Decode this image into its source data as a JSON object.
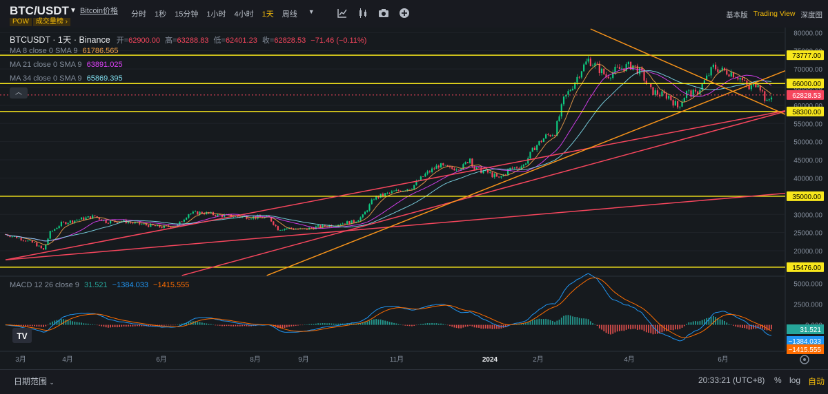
{
  "header": {
    "pair": "BTC/USDT",
    "price_link": "Bitcoin价格",
    "tags": [
      "POW",
      "成交量榜"
    ],
    "intervals": [
      {
        "label": "分时",
        "active": false
      },
      {
        "label": "1秒",
        "active": false
      },
      {
        "label": "15分钟",
        "active": false
      },
      {
        "label": "1小时",
        "active": false
      },
      {
        "label": "4小时",
        "active": false
      },
      {
        "label": "1天",
        "active": true
      },
      {
        "label": "周线",
        "active": false
      }
    ],
    "tool_icons": [
      "indicator-icon",
      "chart-type-icon",
      "camera-icon",
      "add-icon"
    ],
    "views": [
      {
        "label": "基本版",
        "active": false
      },
      {
        "label": "Trading View",
        "active": true
      },
      {
        "label": "深度图",
        "active": false
      }
    ]
  },
  "chart_header": {
    "symbol": "BTCUSDT · 1天 · Binance",
    "open_label": "开=",
    "open": "62900.00",
    "high_label": "高=",
    "high": "63288.83",
    "low_label": "低=",
    "low": "62401.23",
    "close_label": "收=",
    "close": "62828.53",
    "change": "−71.46 (−0.11%)"
  },
  "ma_legend": [
    {
      "label": "MA 8 close 0 SMA 9",
      "value": "61786.565",
      "color": "#f0a04b"
    },
    {
      "label": "MA 21 close 0 SMA 9",
      "value": "63891.025",
      "color": "#e040fb"
    },
    {
      "label": "MA 34 close 0 SMA 9",
      "value": "65869.395",
      "color": "#7fdcec"
    }
  ],
  "macd_legend": {
    "label": "MACD 12 26 close 9",
    "hist": "31.521",
    "macd": "−1384.033",
    "signal": "−1415.555"
  },
  "colors": {
    "up": "#0ecb81",
    "down": "#f6465d",
    "hline": "#f8e71c",
    "orange_trend": "#f7931a",
    "red_trend": "#f6465d",
    "macd_line": "#2196f3",
    "signal_line": "#ff6d00",
    "accent": "#f0b90b"
  },
  "chart_data": {
    "type": "candlestick",
    "y_axis_ticks": [
      80000,
      75000,
      70000,
      65000,
      60000,
      55000,
      50000,
      45000,
      40000,
      35000,
      30000,
      25000,
      20000
    ],
    "y_range": [
      13000,
      81000
    ],
    "x_axis_ticks": [
      "3月",
      "4月",
      "6月",
      "8月",
      "9月",
      "11月",
      "2024",
      "2月",
      "4月",
      "6月"
    ],
    "horizontal_levels": [
      73777,
      66000,
      58300,
      35000,
      15476
    ],
    "price_labels": [
      "73777.00",
      "66000.00",
      "62828.53",
      "58300.00",
      "35000.00",
      "15476.00"
    ],
    "current_price": 62828.53,
    "macd_axis_ticks": [
      "5000.000",
      "2500.000",
      "0.000"
    ],
    "macd_range": [
      -3200,
      5800
    ],
    "macd_price_labels": [
      "31.521",
      "−1384.033",
      "−1415.555"
    ],
    "price_path": [
      [
        0,
        24500
      ],
      [
        6,
        23500
      ],
      [
        13,
        22000
      ],
      [
        17,
        20200
      ],
      [
        20,
        25000
      ],
      [
        25,
        27500
      ],
      [
        32,
        28500
      ],
      [
        40,
        29500
      ],
      [
        45,
        28000
      ],
      [
        52,
        28200
      ],
      [
        58,
        27500
      ],
      [
        64,
        27000
      ],
      [
        70,
        26500
      ],
      [
        77,
        27000
      ],
      [
        82,
        30200
      ],
      [
        88,
        30500
      ],
      [
        95,
        29800
      ],
      [
        101,
        29500
      ],
      [
        107,
        29300
      ],
      [
        113,
        29200
      ],
      [
        118,
        29100
      ],
      [
        122,
        26000
      ],
      [
        127,
        26200
      ],
      [
        133,
        25800
      ],
      [
        139,
        26500
      ],
      [
        145,
        27000
      ],
      [
        150,
        27500
      ],
      [
        156,
        28000
      ],
      [
        160,
        29500
      ],
      [
        165,
        34500
      ],
      [
        170,
        35500
      ],
      [
        176,
        36500
      ],
      [
        182,
        37500
      ],
      [
        188,
        41000
      ],
      [
        194,
        43500
      ],
      [
        199,
        42500
      ],
      [
        205,
        43200
      ],
      [
        208,
        45500
      ],
      [
        210,
        42500
      ],
      [
        216,
        41500
      ],
      [
        221,
        39800
      ],
      [
        226,
        42500
      ],
      [
        232,
        43500
      ],
      [
        237,
        48500
      ],
      [
        242,
        51500
      ],
      [
        246,
        52500
      ],
      [
        250,
        61500
      ],
      [
        254,
        65500
      ],
      [
        258,
        70000
      ],
      [
        261,
        72500
      ],
      [
        265,
        70500
      ],
      [
        269,
        68000
      ],
      [
        273,
        69500
      ],
      [
        277,
        70500
      ],
      [
        281,
        71000
      ],
      [
        285,
        68500
      ],
      [
        289,
        64000
      ],
      [
        293,
        63000
      ],
      [
        297,
        62500
      ],
      [
        301,
        59500
      ],
      [
        305,
        63500
      ],
      [
        309,
        63000
      ],
      [
        313,
        66500
      ],
      [
        317,
        70500
      ],
      [
        321,
        69500
      ],
      [
        325,
        69000
      ],
      [
        329,
        67500
      ],
      [
        333,
        64500
      ],
      [
        337,
        66500
      ],
      [
        341,
        60500
      ],
      [
        343,
        62828
      ]
    ],
    "x_count": 344
  },
  "bottom": {
    "date_range": "日期范围",
    "clock": "20:33:21 (UTC+8)",
    "percent": "%",
    "log": "log",
    "auto": "自动"
  }
}
